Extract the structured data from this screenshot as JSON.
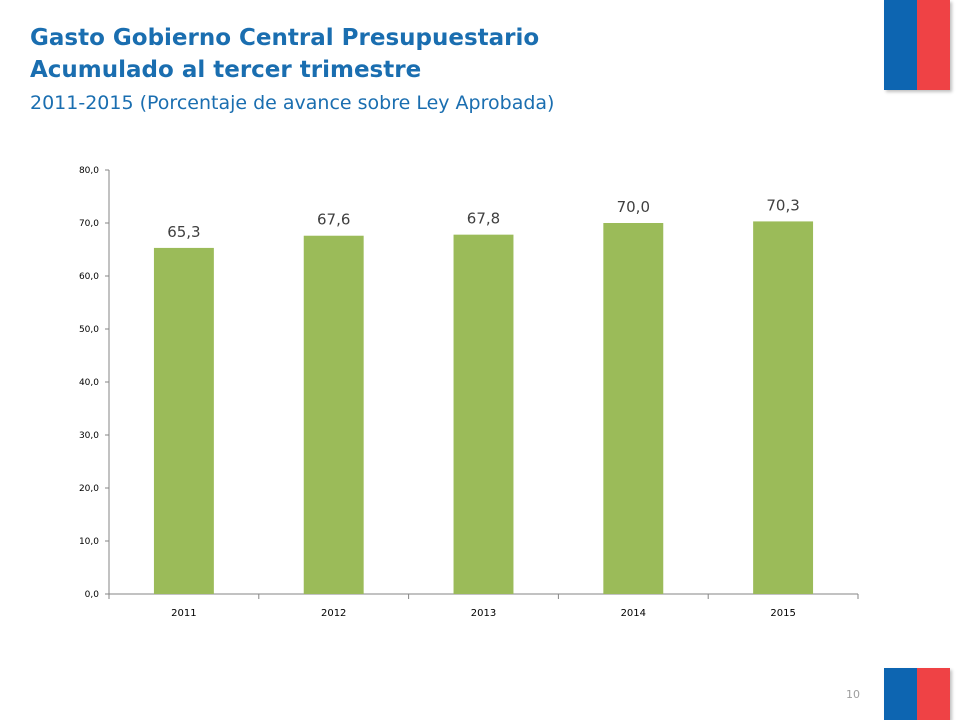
{
  "title": {
    "line1": "Gasto Gobierno Central Presupuestario",
    "line2": "Acumulado al tercer trimestre",
    "subtitle": "2011-2015 (Porcentaje de avance sobre Ley Aprobada)"
  },
  "page_number": "10",
  "colors": {
    "title": "#1a6eb0",
    "bar": "#9bbb59",
    "flag_blue": "#0d65b1",
    "flag_red": "#ef4245"
  },
  "chart_data": {
    "type": "bar",
    "categories": [
      "2011",
      "2012",
      "2013",
      "2014",
      "2015"
    ],
    "values": [
      65.3,
      67.6,
      67.8,
      70.0,
      70.3
    ],
    "data_labels": [
      "65,3",
      "67,6",
      "67,8",
      "70,0",
      "70,3"
    ],
    "yticks": [
      "0,0",
      "10,0",
      "20,0",
      "30,0",
      "40,0",
      "50,0",
      "60,0",
      "70,0",
      "80,0"
    ],
    "ylim": [
      0,
      80
    ],
    "grid": false,
    "legend": "none",
    "title": "",
    "xlabel": "",
    "ylabel": ""
  }
}
